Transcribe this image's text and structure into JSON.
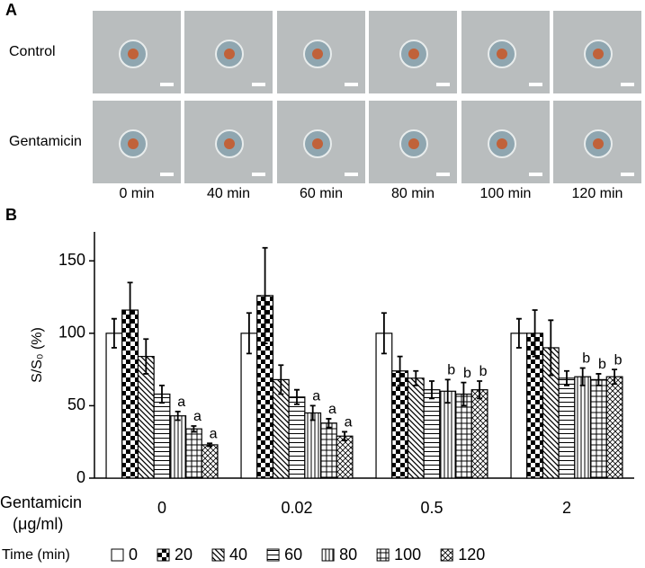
{
  "panel_a": {
    "label": "A",
    "rows": [
      "Control",
      "Gentamicin"
    ],
    "columns": [
      "0 min",
      "40 min",
      "60 min",
      "80 min",
      "100 min",
      "120 min"
    ]
  },
  "chart_data": {
    "type": "bar",
    "panel_label": "B",
    "y_label": "S/S₀ (%)",
    "x_label": [
      "Gentamicin",
      "(μg/ml)"
    ],
    "legend_title": "Time (min)",
    "categories": [
      "0",
      "0.02",
      "0.5",
      "2"
    ],
    "ylim": [
      0,
      170
    ],
    "yticks": [
      0,
      50,
      100,
      150
    ],
    "grid": false,
    "series": [
      {
        "name": "0",
        "color": "#000000",
        "pattern": "none",
        "values": [
          100,
          100,
          100,
          100
        ],
        "errors": [
          10,
          14,
          14,
          10
        ]
      },
      {
        "name": "20",
        "color": "#000000",
        "pattern": "checker",
        "values": [
          116,
          126,
          74,
          100
        ],
        "errors": [
          19,
          33,
          10,
          16
        ]
      },
      {
        "name": "40",
        "color": "#000000",
        "pattern": "diag",
        "values": [
          84,
          68,
          69,
          90
        ],
        "errors": [
          12,
          10,
          5,
          19
        ]
      },
      {
        "name": "60",
        "color": "#000000",
        "pattern": "hlines",
        "values": [
          58,
          56,
          61,
          69
        ],
        "errors": [
          6,
          5,
          6,
          5
        ]
      },
      {
        "name": "80",
        "color": "#000000",
        "pattern": "vlines",
        "values": [
          43,
          45,
          60,
          70
        ],
        "errors": [
          3,
          5,
          8,
          6
        ],
        "significance": [
          "a",
          "a",
          "b",
          "b"
        ]
      },
      {
        "name": "100",
        "color": "#000000",
        "pattern": "grid",
        "values": [
          34,
          38,
          58,
          68
        ],
        "errors": [
          2,
          3,
          8,
          4
        ],
        "significance": [
          "a",
          "a",
          "b",
          "b"
        ]
      },
      {
        "name": "120",
        "color": "#000000",
        "pattern": "crosshatch",
        "values": [
          23,
          29,
          61,
          70
        ],
        "errors": [
          1,
          3,
          6,
          5
        ],
        "significance": [
          "a",
          "a",
          "b",
          "b"
        ]
      }
    ]
  }
}
